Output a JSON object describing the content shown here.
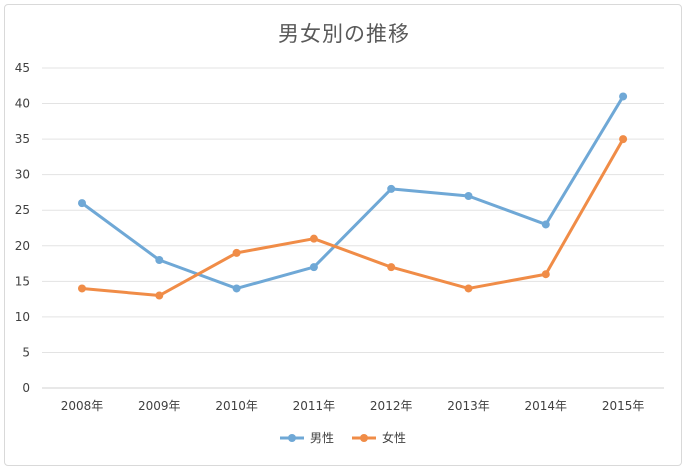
{
  "chart_data": {
    "type": "line",
    "title": "男女別の推移",
    "categories": [
      "2008年",
      "2009年",
      "2010年",
      "2011年",
      "2012年",
      "2013年",
      "2014年",
      "2015年"
    ],
    "series": [
      {
        "name": "男性",
        "values": [
          26,
          18,
          14,
          17,
          28,
          27,
          23,
          41
        ],
        "color": "#6fa8d6"
      },
      {
        "name": "女性",
        "values": [
          14,
          13,
          19,
          21,
          17,
          14,
          16,
          35
        ],
        "color": "#f08c47"
      }
    ],
    "ylim": [
      0,
      45
    ],
    "yticks": [
      0,
      5,
      10,
      15,
      20,
      25,
      30,
      35,
      40,
      45
    ],
    "grid": true,
    "legend_position": "bottom"
  }
}
